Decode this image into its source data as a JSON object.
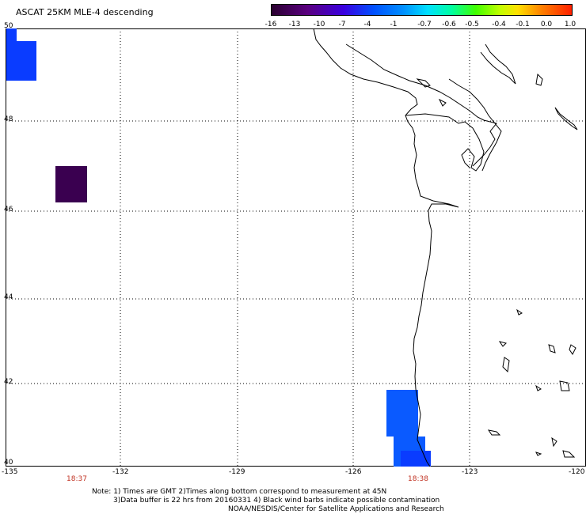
{
  "title": "ASCAT 25KM MLE-4 descending",
  "colorbar": {
    "labels": [
      "-16",
      "-13",
      "-10",
      "-7",
      "-4",
      "-1",
      "-0.7",
      "-0.6",
      "-0.5",
      "-0.4",
      "-0.1",
      "0.0",
      "1.0"
    ]
  },
  "map": {
    "lat_labels": [
      "50",
      "48",
      "46",
      "44",
      "42",
      "40"
    ],
    "lon_labels": [
      "-135",
      "-132",
      "-129",
      "-126",
      "-123",
      "-120"
    ],
    "time_labels": [
      "18:37",
      "18:38"
    ],
    "colors": {
      "dark_purple": "#3a0050",
      "blue": "#0a3cff",
      "light_blue": "#0a5aff",
      "time_red": "#c03020"
    }
  },
  "footer": {
    "line1": "Note: 1) Times are GMT 2)Times along bottom correspond to measurement at 45N",
    "line2": "3)Data buffer is 22 hrs from 20160331 4) Black wind barbs indicate possible contamination",
    "line3": "NOAA/NESDIS/Center for Satellite Applications and Research"
  }
}
